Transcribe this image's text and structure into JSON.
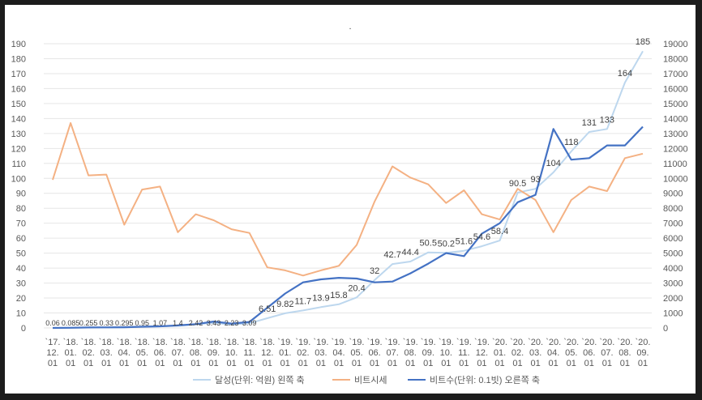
{
  "chart_data": {
    "type": "line",
    "title": ".",
    "categories": [
      "`17.12.01",
      "`18.01.01",
      "`18.02.01",
      "`18.03.01",
      "`18.04.01",
      "`18.05.01",
      "`18.06.01",
      "`18.07.01",
      "`18.08.01",
      "`18.09.01",
      "`18.10.01",
      "`18.11.01",
      "`18.12.01",
      "`19.01.01",
      "`19.02.01",
      "`19.03.01",
      "`19.04.01",
      "`19.05.01",
      "`19.06.01",
      "`19.07.01",
      "`19.08.01",
      "`19.09.01",
      "`19.10.01",
      "`19.11.01",
      "`19.12.01",
      "`20.01.01",
      "`20.02.01",
      "`20.03.01",
      "`20.04.01",
      "`20.05.01",
      "`20.06.01",
      "`20.07.01",
      "`20.08.01",
      "`20.09.01"
    ],
    "category_lines": [
      [
        "`17.",
        "12.",
        "01"
      ],
      [
        "`18.",
        "01.",
        "01"
      ],
      [
        "`18.",
        "02.",
        "01"
      ],
      [
        "`18.",
        "03.",
        "01"
      ],
      [
        "`18.",
        "04.",
        "01"
      ],
      [
        "`18.",
        "05.",
        "01"
      ],
      [
        "`18.",
        "06.",
        "01"
      ],
      [
        "`18.",
        "07.",
        "01"
      ],
      [
        "`18.",
        "08.",
        "01"
      ],
      [
        "`18.",
        "09.",
        "01"
      ],
      [
        "`18.",
        "10.",
        "01"
      ],
      [
        "`18.",
        "11.",
        "01"
      ],
      [
        "`18.",
        "12.",
        "01"
      ],
      [
        "`19.",
        "01.",
        "01"
      ],
      [
        "`19.",
        "02.",
        "01"
      ],
      [
        "`19.",
        "03.",
        "01"
      ],
      [
        "`19.",
        "04.",
        "01"
      ],
      [
        "`19.",
        "05.",
        "01"
      ],
      [
        "`19.",
        "06.",
        "01"
      ],
      [
        "`19.",
        "07.",
        "01"
      ],
      [
        "`19.",
        "08.",
        "01"
      ],
      [
        "`19.",
        "09.",
        "01"
      ],
      [
        "`19.",
        "10.",
        "01"
      ],
      [
        "`19.",
        "11.",
        "01"
      ],
      [
        "`19.",
        "12.",
        "01"
      ],
      [
        "`20.",
        "01.",
        "01"
      ],
      [
        "`20.",
        "02.",
        "01"
      ],
      [
        "`20.",
        "03.",
        "01"
      ],
      [
        "`20.",
        "04.",
        "01"
      ],
      [
        "`20.",
        "05.",
        "01"
      ],
      [
        "`20.",
        "06.",
        "01"
      ],
      [
        "`20.",
        "07.",
        "01"
      ],
      [
        "`20.",
        "08.",
        "01"
      ],
      [
        "`20.",
        "09.",
        "01"
      ]
    ],
    "y_left": {
      "min": 0,
      "max": 190,
      "step": 10
    },
    "y_right": {
      "min": 0,
      "max": 19000,
      "step": 1000
    },
    "grid": true,
    "legend_position": "bottom",
    "series": [
      {
        "name": "달성(단위: 억원) 왼쪽 축",
        "axis": "left",
        "color": "#bdd7ee",
        "values": [
          0.06,
          0.085,
          0.255,
          0.33,
          0.295,
          0.95,
          1.07,
          1.4,
          2.42,
          3.43,
          2.23,
          3.09,
          6.51,
          9.82,
          11.7,
          13.9,
          15.8,
          20.4,
          32,
          42.7,
          44.4,
          50.5,
          50.2,
          51.6,
          54.6,
          58.4,
          90.5,
          93,
          104,
          118,
          131,
          133,
          164,
          185
        ],
        "labels": [
          "0.06",
          "0.085",
          "0.255",
          "0.33",
          "0.295",
          "0.95",
          "1.07",
          "1.4",
          "2.42",
          "3.43",
          "2.23",
          "3.09",
          "6.51",
          "9.82",
          "11.7",
          "13.9",
          "15.8",
          "20.4",
          "32",
          "42.7",
          "44.4",
          "50.5",
          "50.2",
          "51.6",
          "54.6",
          "58.4",
          "90.5",
          "93",
          "104",
          "118",
          "131",
          "133",
          "164",
          "185"
        ]
      },
      {
        "name": "비트시세",
        "axis": "right",
        "color": "#f4b183",
        "values": [
          9900,
          13700,
          10200,
          10250,
          6900,
          9250,
          9450,
          6400,
          7600,
          7200,
          6600,
          6350,
          4050,
          3850,
          3500,
          3850,
          4150,
          5550,
          8450,
          10800,
          10050,
          9600,
          8350,
          9200,
          7600,
          7250,
          9300,
          8550,
          6400,
          8550,
          9450,
          9150,
          11350,
          11650
        ]
      },
      {
        "name": "비트수(단위: 0.1빗) 오른쪽 축",
        "axis": "right",
        "color": "#4472c4",
        "values": [
          0,
          10,
          30,
          40,
          50,
          80,
          110,
          170,
          250,
          430,
          290,
          400,
          1350,
          2300,
          3050,
          3250,
          3350,
          3300,
          3050,
          3100,
          3650,
          4300,
          5000,
          4800,
          6300,
          7000,
          8400,
          8900,
          13300,
          11250,
          11350,
          12200,
          12200,
          13450
        ]
      }
    ]
  }
}
